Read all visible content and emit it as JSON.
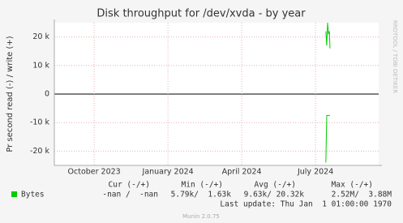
{
  "chart_data": {
    "type": "line",
    "title": "Disk throughput for /dev/xvda - by year",
    "y_label": "Pr second read (-) / write (+)",
    "side_label": "RRDTOOL / TOBI OETIKER",
    "xlim": [
      2023.615,
      2024.714
    ],
    "xticks": [
      {
        "value": 2023.75,
        "label": "October 2023"
      },
      {
        "value": 2024.0,
        "label": "January 2024"
      },
      {
        "value": 2024.25,
        "label": "April 2024"
      },
      {
        "value": 2024.5,
        "label": "July 2024"
      }
    ],
    "ylim": [
      -25000,
      25000
    ],
    "yticks": [
      {
        "value": -20000,
        "label": "-20 k"
      },
      {
        "value": -10000,
        "label": "-10 k"
      },
      0,
      {
        "value": 10000,
        "label": "10 k"
      },
      {
        "value": 20000,
        "label": "20 k"
      }
    ],
    "grid": true,
    "series": [
      {
        "name": "Bytes",
        "color": "#00cc00",
        "x": [
          2024.535,
          2024.538,
          2024.541,
          2024.544,
          2024.547,
          2024.549
        ],
        "values": [
          22000,
          17000,
          25000,
          21000,
          22000,
          16000
        ]
      },
      {
        "color": "#00cc00",
        "x": [
          2024.535,
          2024.538,
          2024.549
        ],
        "values": [
          -24000,
          -7500,
          -7500
        ]
      }
    ],
    "legend_table": {
      "headers": [
        "Cur (-/+)",
        "Min (-/+)",
        "Avg (-/+)",
        "Max (-/+)"
      ],
      "rows": [
        [
          "Bytes",
          "-nan /  -nan",
          "5.79k/  1.63k",
          "9.63k/ 20.32k",
          "2.52M/  3.88M"
        ]
      ]
    },
    "last_update": "Last update: Thu Jan  1 01:00:00 1970",
    "footer": "Munin 2.0.75"
  }
}
